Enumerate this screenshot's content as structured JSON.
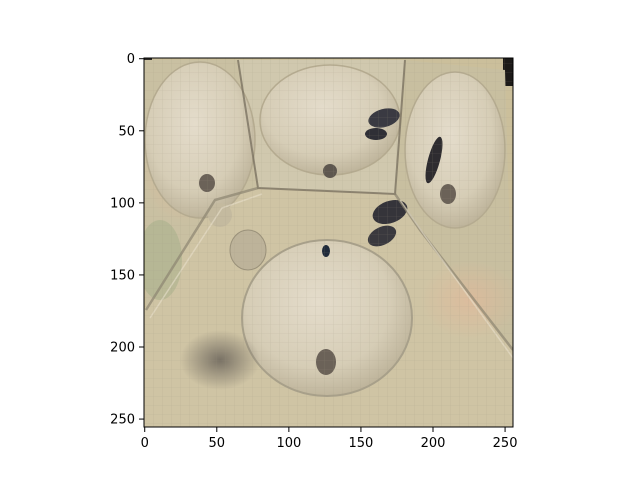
{
  "figure": {
    "background": "#ffffff"
  },
  "image": {
    "description_colors": {
      "base": "#cbbf9b",
      "plate": "#d9d2bb",
      "plate_edge": "#a8a08a",
      "hole": "#6b6258",
      "dark_blob": "#3a3a42",
      "shadow": "#8f8577",
      "warm": "#d8b28c",
      "green_tint": "#9fae86"
    }
  },
  "axes": {
    "x_ticks": [
      {
        "value": 0,
        "label": "0"
      },
      {
        "value": 50,
        "label": "50"
      },
      {
        "value": 100,
        "label": "100"
      },
      {
        "value": 150,
        "label": "150"
      },
      {
        "value": 200,
        "label": "200"
      },
      {
        "value": 250,
        "label": "250"
      }
    ],
    "y_ticks": [
      {
        "value": 0,
        "label": "0"
      },
      {
        "value": 50,
        "label": "50"
      },
      {
        "value": 100,
        "label": "100"
      },
      {
        "value": 150,
        "label": "150"
      },
      {
        "value": 200,
        "label": "200"
      },
      {
        "value": 250,
        "label": "250"
      }
    ],
    "xlim": [
      -0.5,
      255.5
    ],
    "ylim": [
      255.5,
      -0.5
    ]
  }
}
